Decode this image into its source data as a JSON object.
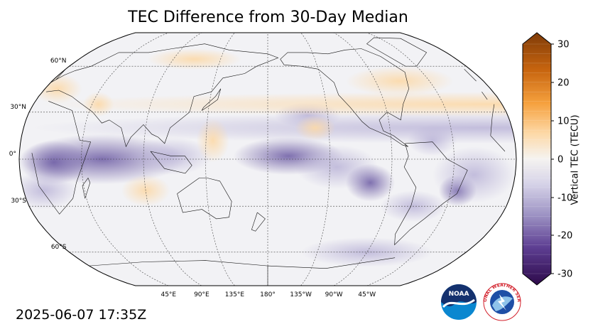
{
  "title": "TEC Difference from 30-Day Median",
  "timestamp": "2025-06-07 17:35Z",
  "colorbar": {
    "label": "Vertical TEC (TECU)",
    "ticks": [
      "30",
      "20",
      "10",
      "0",
      "-10",
      "-20",
      "-30"
    ],
    "range": [
      -30,
      30
    ],
    "colors": {
      "positive": "#7a3a05",
      "neutral": "#f2f2f2",
      "negative": "#2d0a4a"
    }
  },
  "map": {
    "projection": "Robinson",
    "central_longitude": 180,
    "lat_labels": [
      "60°N",
      "30°N",
      "0°",
      "30°S",
      "60°S"
    ],
    "lon_labels": [
      "45°E",
      "90°E",
      "135°E",
      "180°",
      "135°W",
      "90°W",
      "45°W"
    ]
  },
  "logos": {
    "noaa_text": "NOAA",
    "nws_text": "NATIONAL WEATHER SERVICE"
  }
}
